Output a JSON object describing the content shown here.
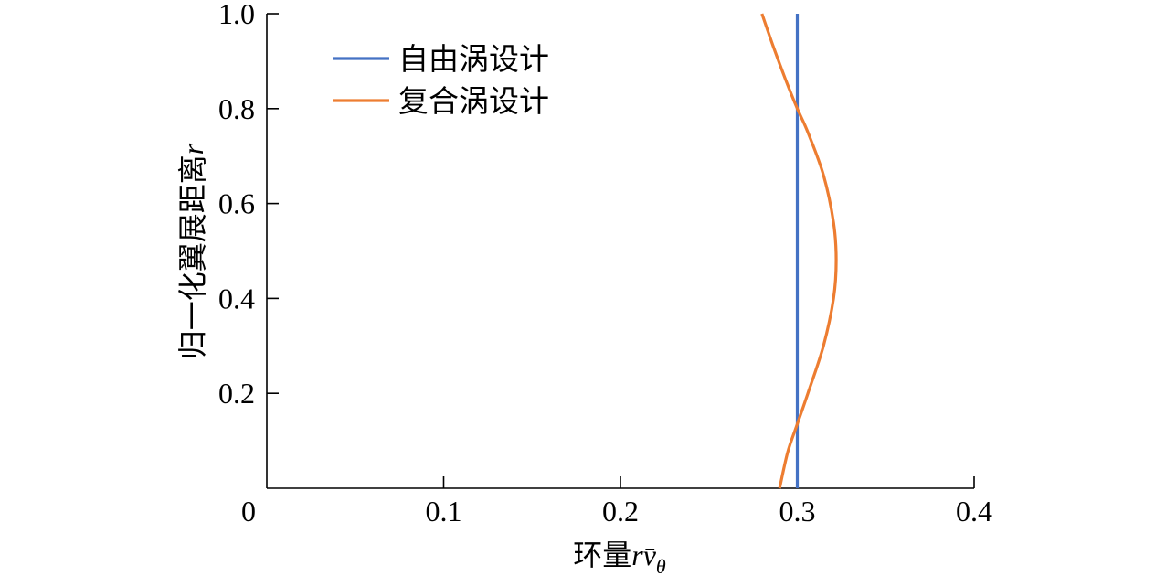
{
  "chart_data": {
    "type": "line",
    "title": "",
    "xlabel_prefix": "环量",
    "xlabel_var": "rv̄",
    "xlabel_sub": "θ",
    "ylabel_prefix": "归一化翼展距离",
    "ylabel_var": "r",
    "xlim": [
      0,
      0.4
    ],
    "ylim": [
      0,
      1.0
    ],
    "x_ticks": [
      {
        "value": 0,
        "label": "0"
      },
      {
        "value": 0.1,
        "label": "0.1"
      },
      {
        "value": 0.2,
        "label": "0.2"
      },
      {
        "value": 0.3,
        "label": "0.3"
      },
      {
        "value": 0.4,
        "label": "0.4"
      }
    ],
    "y_ticks": [
      {
        "value": 0.2,
        "label": "0.2"
      },
      {
        "value": 0.4,
        "label": "0.4"
      },
      {
        "value": 0.6,
        "label": "0.6"
      },
      {
        "value": 0.8,
        "label": "0.8"
      },
      {
        "value": 1.0,
        "label": "1.0"
      }
    ],
    "grid": false,
    "legend_position": "top-left",
    "series": [
      {
        "name": "自由涡设计",
        "color": "#4472C4",
        "points": [
          {
            "x": 0.3,
            "y": 0.0
          },
          {
            "x": 0.3,
            "y": 1.0
          }
        ]
      },
      {
        "name": "复合涡设计",
        "color": "#ED7D31",
        "points": [
          {
            "x": 0.29,
            "y": 0.0
          },
          {
            "x": 0.2945,
            "y": 0.075
          },
          {
            "x": 0.2995,
            "y": 0.13
          },
          {
            "x": 0.306,
            "y": 0.2
          },
          {
            "x": 0.3148,
            "y": 0.3
          },
          {
            "x": 0.3205,
            "y": 0.4
          },
          {
            "x": 0.322,
            "y": 0.48
          },
          {
            "x": 0.3205,
            "y": 0.56
          },
          {
            "x": 0.3148,
            "y": 0.66
          },
          {
            "x": 0.306,
            "y": 0.75
          },
          {
            "x": 0.3,
            "y": 0.8
          },
          {
            "x": 0.2935,
            "y": 0.86
          },
          {
            "x": 0.2865,
            "y": 0.93
          },
          {
            "x": 0.28,
            "y": 1.0
          }
        ]
      }
    ]
  }
}
